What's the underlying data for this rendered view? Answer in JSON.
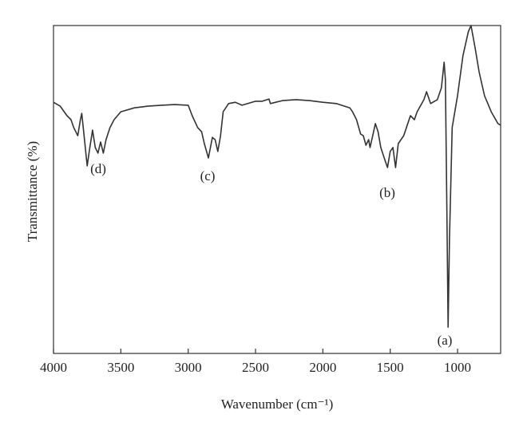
{
  "chart_data": {
    "type": "line",
    "xlabel": "Wavenumber (cm⁻¹)",
    "ylabel": "Transmittance (%)",
    "x": [
      4000,
      3950,
      3900,
      3870,
      3850,
      3820,
      3800,
      3790,
      3770,
      3750,
      3730,
      3710,
      3690,
      3670,
      3650,
      3630,
      3610,
      3580,
      3550,
      3500,
      3400,
      3300,
      3200,
      3100,
      3000,
      2970,
      2930,
      2900,
      2880,
      2850,
      2820,
      2800,
      2780,
      2760,
      2740,
      2700,
      2650,
      2600,
      2500,
      2450,
      2400,
      2390,
      2300,
      2200,
      2100,
      2000,
      1900,
      1800,
      1780,
      1750,
      1720,
      1700,
      1680,
      1660,
      1650,
      1630,
      1610,
      1590,
      1570,
      1540,
      1520,
      1500,
      1480,
      1460,
      1440,
      1400,
      1350,
      1320,
      1300,
      1250,
      1230,
      1200,
      1150,
      1120,
      1100,
      1090,
      1080,
      1070,
      1060,
      1040,
      1000,
      960,
      920,
      900,
      870,
      840,
      800,
      750,
      700,
      680
    ],
    "series": [
      {
        "name": "Transmittance",
        "color": "#333333",
        "values": [
          76.6,
          75.4,
          72.5,
          71.3,
          68.9,
          66.4,
          71.3,
          73.2,
          65.2,
          57.2,
          62.8,
          68.1,
          62.8,
          61.1,
          64.5,
          61.1,
          65.2,
          68.9,
          71.3,
          73.7,
          74.9,
          75.4,
          75.7,
          75.9,
          75.7,
          72.5,
          68.9,
          67.6,
          64.0,
          59.6,
          65.9,
          65.2,
          61.6,
          66.4,
          73.7,
          76.2,
          76.6,
          75.7,
          76.9,
          76.9,
          77.6,
          76.2,
          77.1,
          77.4,
          77.1,
          76.6,
          76.2,
          74.9,
          73.7,
          71.3,
          66.9,
          66.4,
          63.5,
          65.2,
          62.8,
          66.4,
          70.1,
          67.6,
          62.8,
          59.1,
          56.7,
          61.6,
          62.8,
          56.7,
          64.0,
          66.4,
          72.5,
          71.3,
          73.7,
          77.4,
          79.8,
          76.2,
          77.4,
          81.0,
          88.8,
          83.5,
          47.0,
          8.0,
          34.8,
          68.9,
          78.6,
          90.8,
          98.1,
          100,
          93.2,
          85.9,
          78.6,
          73.7,
          70.1,
          69.6
        ]
      }
    ],
    "xlim": [
      4000,
      680
    ],
    "ylim": [
      0,
      100
    ],
    "xticks": [
      4000,
      3500,
      3000,
      2500,
      2000,
      1500,
      1000
    ],
    "annotations": [
      "(a)",
      "(b)",
      "(c)",
      "(d)"
    ]
  }
}
